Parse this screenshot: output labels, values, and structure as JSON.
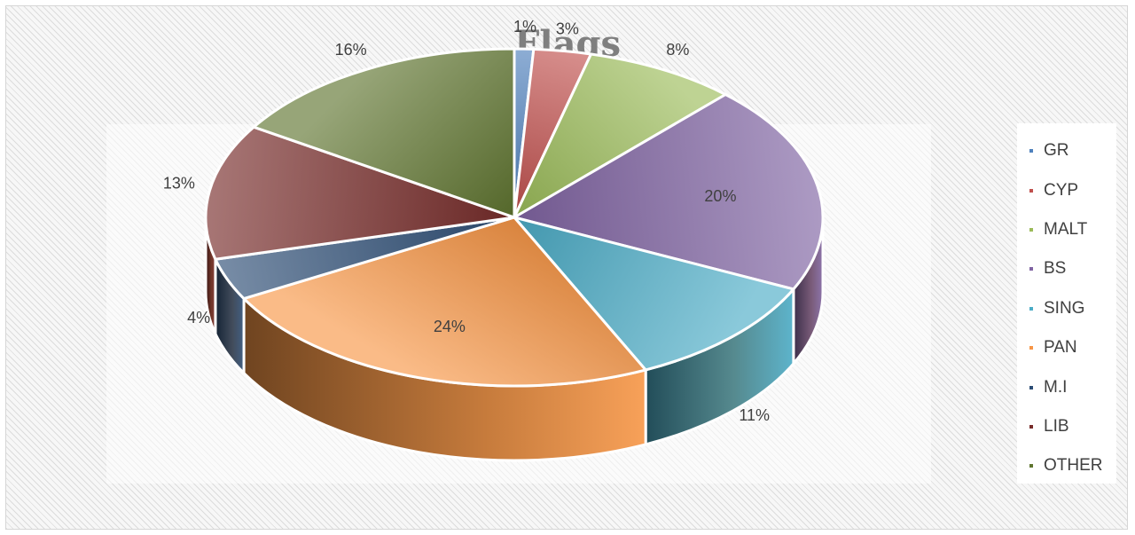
{
  "chart_data": {
    "type": "pie",
    "title": "Flags",
    "categories": [
      "GR",
      "CYP",
      "MALT",
      "BS",
      "SING",
      "PAN",
      "M.I",
      "LIB",
      "OTHER"
    ],
    "values": [
      1,
      3,
      8,
      20,
      11,
      24,
      4,
      13,
      16
    ],
    "labels": [
      "1%",
      "3%",
      "8%",
      "20%",
      "11%",
      "24%",
      "4%",
      "13%",
      "16%"
    ],
    "colors": [
      "#4f81bd",
      "#c0504d",
      "#9bbb59",
      "#8064a2",
      "#4bacc6",
      "#f79646",
      "#2c4d75",
      "#772c2a",
      "#5f7530"
    ],
    "legend_position": "right",
    "style": "3d-pie"
  }
}
